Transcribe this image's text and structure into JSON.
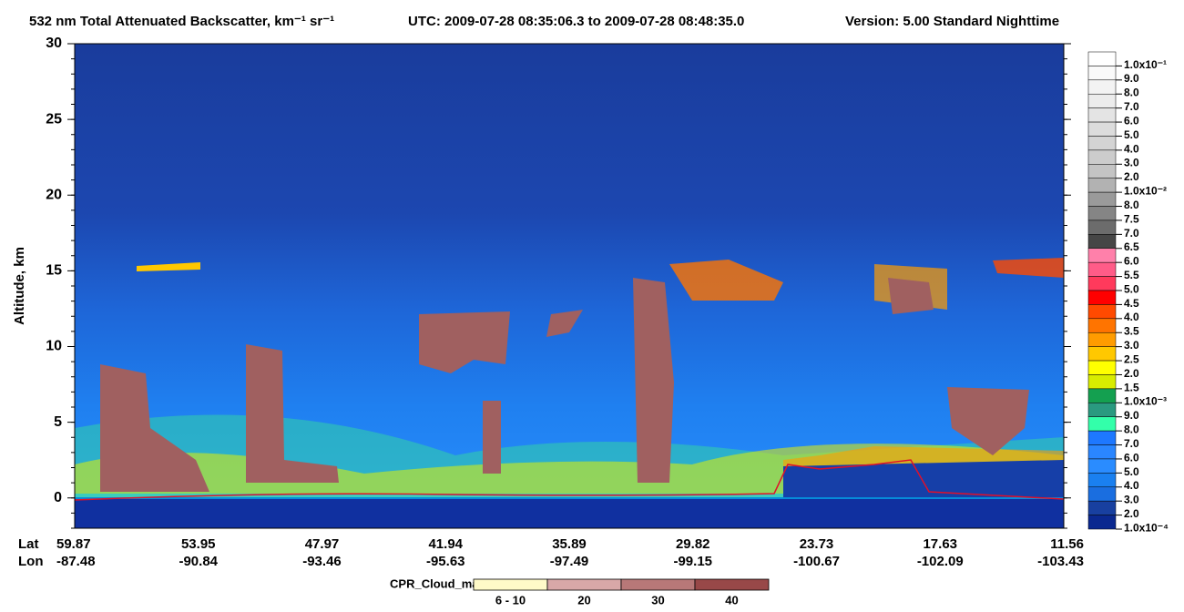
{
  "chart_data": {
    "type": "heatmap",
    "title": "532 nm Total Attenuated Backscatter, km⁻¹ sr⁻¹",
    "utc": "UTC:  2009-07-28 08:35:06.3  to  2009-07-28 08:48:35.0",
    "version": "Version: 5.00  Standard  Nighttime",
    "ylabel": "Altitude, km",
    "ylim": [
      -2,
      30
    ],
    "yticks": [
      0,
      5,
      10,
      15,
      20,
      25,
      30
    ],
    "lat_label": "Lat",
    "lon_label": "Lon",
    "lat": [
      59.87,
      53.95,
      47.97,
      41.94,
      35.89,
      29.82,
      23.73,
      17.63,
      11.56
    ],
    "lon": [
      -87.48,
      -90.84,
      -93.46,
      -95.63,
      -97.49,
      -99.15,
      -100.67,
      -102.09,
      -103.43
    ],
    "colorbar": {
      "labels": [
        "1.0x10⁻¹",
        "9.0",
        "8.0",
        "7.0",
        "6.0",
        "5.0",
        "4.0",
        "3.0",
        "2.0",
        "1.0x10⁻²",
        "8.0",
        "7.5",
        "7.0",
        "6.5",
        "6.0",
        "5.5",
        "5.0",
        "4.5",
        "4.0",
        "3.5",
        "3.0",
        "2.5",
        "2.0",
        "1.5",
        "1.0x10⁻³",
        "9.0",
        "8.0",
        "7.0",
        "6.0",
        "5.0",
        "4.0",
        "3.0",
        "2.0",
        "1.0x10⁻⁴"
      ],
      "colors": [
        "#ffffff",
        "#fafafa",
        "#f3f3f3",
        "#ececec",
        "#e4e4e4",
        "#dcdcdc",
        "#d4d4d4",
        "#cccccc",
        "#c4c4c4",
        "#b2b2b2",
        "#9a9a9a",
        "#858585",
        "#6c6c6c",
        "#464646",
        "#ff80aa",
        "#ff5c88",
        "#ff3a5c",
        "#ff0000",
        "#ff4a00",
        "#ff7400",
        "#ff9c00",
        "#ffc800",
        "#ffff00",
        "#d8ec00",
        "#14a050",
        "#2a9a80",
        "#33ffaa",
        "#1e78ff",
        "#2a86ff",
        "#2a8cff",
        "#1a80f0",
        "#1a6ee0",
        "#1840a0",
        "#0a2890"
      ]
    },
    "cpr": {
      "title": "CPR_Cloud_mask",
      "labels": [
        "6 - 10",
        "20",
        "30",
        "40"
      ],
      "colors": [
        "#fffac8",
        "#d8a8a8",
        "#b87878",
        "#984848"
      ]
    }
  }
}
